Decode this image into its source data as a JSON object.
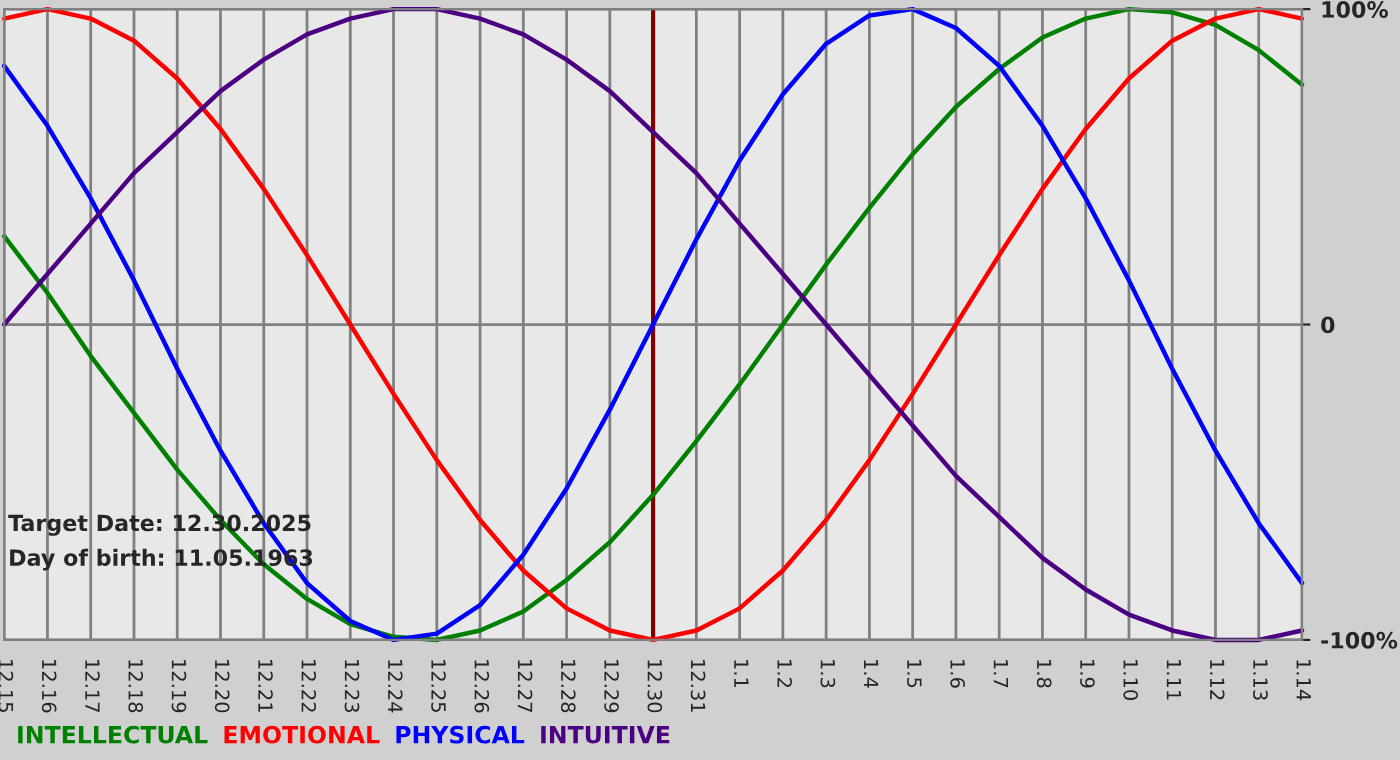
{
  "chart_data": {
    "type": "line",
    "categories": [
      "12.15",
      "12.16",
      "12.17",
      "12.18",
      "12.19",
      "12.20",
      "12.21",
      "12.22",
      "12.23",
      "12.24",
      "12.25",
      "12.26",
      "12.27",
      "12.28",
      "12.29",
      "12.30",
      "12.31",
      "1.1",
      "1.2",
      "1.3",
      "1.4",
      "1.5",
      "1.6",
      "1.7",
      "1.8",
      "1.9",
      "1.10",
      "1.11",
      "1.12",
      "1.13",
      "1.14"
    ],
    "series": [
      {
        "name": "INTELLECTUAL",
        "color": "#008000",
        "values": [
          28,
          10,
          -10,
          -28,
          -46,
          -62,
          -76,
          -87,
          -95,
          -99,
          -100,
          -97,
          -91,
          -81,
          -69,
          -54,
          -37,
          -19,
          0,
          19,
          37,
          54,
          69,
          81,
          91,
          97,
          100,
          99,
          95,
          87,
          76
        ]
      },
      {
        "name": "EMOTIONAL",
        "color": "#ff0000",
        "values": [
          97,
          100,
          97,
          90,
          78,
          62,
          43,
          22,
          0,
          -22,
          -43,
          -62,
          -78,
          -90,
          -97,
          -100,
          -97,
          -90,
          -78,
          -62,
          -43,
          -22,
          0,
          22,
          43,
          62,
          78,
          90,
          97,
          100,
          97
        ]
      },
      {
        "name": "PHYSICAL",
        "color": "#0000ff",
        "values": [
          82,
          63,
          40,
          14,
          -14,
          -40,
          -63,
          -82,
          -94,
          -100,
          -98,
          -89,
          -73,
          -52,
          -27,
          0,
          27,
          52,
          73,
          89,
          98,
          100,
          94,
          82,
          63,
          40,
          14,
          -14,
          -40,
          -63,
          -82
        ]
      },
      {
        "name": "INTUITIVE",
        "color": "#4b0082",
        "values": [
          0,
          16,
          32,
          48,
          61,
          74,
          84,
          92,
          97,
          100,
          100,
          97,
          92,
          84,
          74,
          61,
          48,
          32,
          16,
          0,
          -16,
          -32,
          -48,
          -61,
          -74,
          -84,
          -92,
          -97,
          -100,
          -100,
          -97
        ]
      }
    ],
    "ylim": [
      -100,
      100
    ],
    "yticks": [
      {
        "value": -100,
        "label": "-100%"
      },
      0,
      {
        "value": 100,
        "label": "100%"
      }
    ],
    "grid": true,
    "legend": "bottom",
    "marker": "none",
    "line_style": "solid",
    "ref_lines": [
      {
        "axis": "x",
        "value": "12.30",
        "color": "#800000"
      }
    ],
    "annotations": [
      "Target Date: 12.30.2025",
      "Day of birth: 11.05.1963"
    ]
  }
}
